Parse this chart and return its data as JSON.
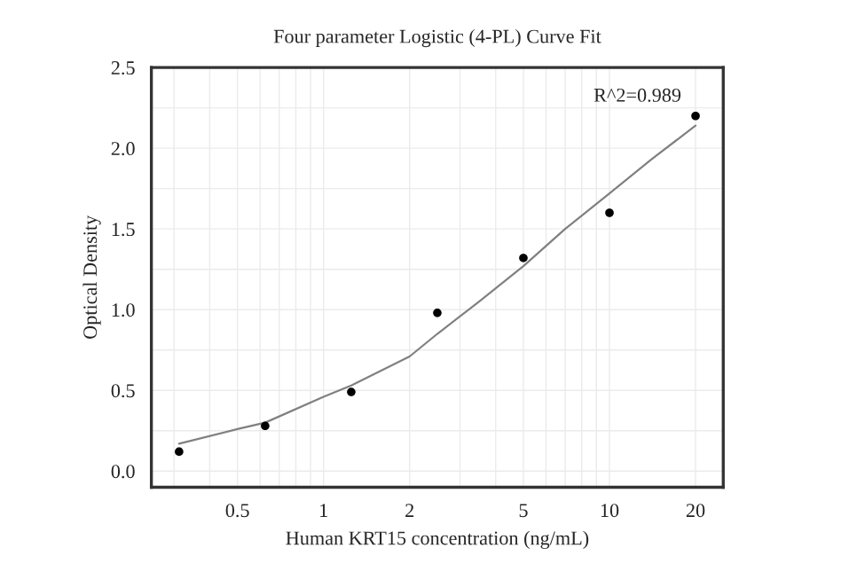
{
  "chart_data": {
    "type": "scatter",
    "title": "Four parameter Logistic (4-PL) Curve Fit",
    "xlabel": "Human KRT15 concentration (ng/mL)",
    "ylabel": "Optical Density",
    "log": "x",
    "grid": true,
    "series": [
      {
        "color": "#000000",
        "marker": "circle",
        "x": [
          0.3125,
          0.625,
          1.25,
          2.5,
          5,
          10,
          20
        ],
        "values": [
          0.12,
          0.28,
          0.49,
          0.98,
          1.32,
          1.6,
          2.2
        ]
      },
      {
        "type": "line",
        "marker": "none",
        "color": "#808080",
        "x": [
          0.3125,
          0.5,
          0.625,
          1,
          1.25,
          2,
          2.5,
          3.5,
          5,
          7,
          10,
          14,
          20
        ],
        "values": [
          0.17,
          0.26,
          0.3,
          0.46,
          0.53,
          0.71,
          0.85,
          1.05,
          1.27,
          1.5,
          1.72,
          1.93,
          2.14
        ]
      }
    ],
    "xlim": [
      0.25,
      25
    ],
    "ylim": [
      -0.1,
      2.5
    ],
    "xticks": [
      0.5,
      1,
      2,
      5,
      10,
      20
    ],
    "yticks": [
      {
        "value": 0,
        "label": "0.0"
      },
      {
        "value": 0.5,
        "label": "0.5"
      },
      {
        "value": 1,
        "label": "1.0"
      },
      {
        "value": 1.5,
        "label": "1.5"
      },
      {
        "value": 2,
        "label": "2.0"
      },
      {
        "value": 2.5,
        "label": "2.5"
      }
    ],
    "annotations": [
      {
        "text": "R^2=0.989"
      }
    ]
  }
}
